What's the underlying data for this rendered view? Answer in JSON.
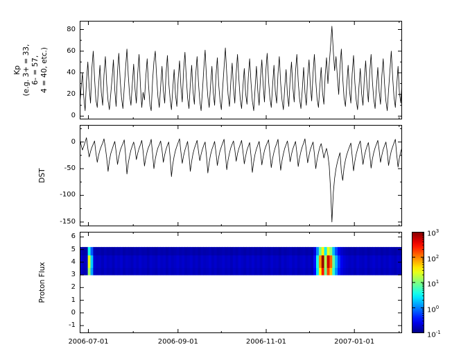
{
  "figure": {
    "background": "#ffffff",
    "axis_color": "#000000",
    "line_color": "#000000"
  },
  "chart_data": {
    "type": "multi-panel",
    "description": "Three stacked geomagnetic/space-weather panels sharing a time axis: Kp index line, DST index line, Proton Flux spectrogram with log colorbar",
    "x": {
      "range_days": [
        0,
        223
      ],
      "major_ticks": [
        {
          "day": 6,
          "label": "2006-07-01"
        },
        {
          "day": 68,
          "label": "2006-09-01"
        },
        {
          "day": 129,
          "label": "2006-11-01"
        },
        {
          "day": 190,
          "label": "2007-01-01"
        }
      ],
      "minor_tick_days": [
        37,
        98,
        159,
        221
      ]
    },
    "panels": [
      {
        "id": "kp",
        "type": "line",
        "ylabel": "Kp (e.g. 3+ = 33, 6- = 57, 4 = 40, etc.)",
        "ylabel_lines": [
          "Kp",
          "(e.g. 3+ = 33,",
          "6- = 57,",
          "4 = 40, etc.)"
        ],
        "ylim": [
          -3,
          88
        ],
        "yticks": [
          0,
          20,
          40,
          60,
          80
        ],
        "yticks_minor": [
          10,
          30,
          50,
          70
        ],
        "line_color": "#000000",
        "values": [
          10,
          25,
          40,
          18,
          5,
          32,
          50,
          27,
          12,
          44,
          60,
          35,
          15,
          8,
          28,
          47,
          22,
          10,
          38,
          55,
          30,
          14,
          6,
          20,
          35,
          52,
          24,
          9,
          41,
          58,
          33,
          17,
          7,
          26,
          45,
          62,
          38,
          19,
          10,
          30,
          48,
          25,
          12,
          40,
          57,
          28,
          8,
          22,
          15,
          36,
          53,
          29,
          11,
          5,
          33,
          50,
          60,
          37,
          18,
          8,
          27,
          46,
          24,
          12,
          39,
          56,
          31,
          16,
          6,
          25,
          43,
          20,
          9,
          34,
          51,
          28,
          13,
          42,
          59,
          36,
          17,
          7,
          29,
          47,
          23,
          11,
          38,
          55,
          32,
          14,
          5,
          24,
          44,
          61,
          35,
          18,
          8,
          28,
          46,
          22,
          10,
          37,
          54,
          30,
          15,
          6,
          26,
          45,
          63,
          39,
          20,
          9,
          31,
          49,
          26,
          12,
          40,
          57,
          34,
          16,
          7,
          27,
          44,
          21,
          11,
          36,
          53,
          31,
          14,
          5,
          25,
          46,
          24,
          10,
          35,
          52,
          29,
          13,
          42,
          58,
          33,
          17,
          8,
          28,
          47,
          23,
          12,
          39,
          55,
          30,
          15,
          6,
          26,
          43,
          20,
          9,
          34,
          50,
          27,
          13,
          41,
          57,
          32,
          16,
          7,
          24,
          45,
          22,
          10,
          36,
          52,
          28,
          14,
          40,
          57,
          33,
          16,
          8,
          27,
          45,
          22,
          11,
          38,
          54,
          30,
          48,
          65,
          83,
          60,
          42,
          55,
          37,
          20,
          46,
          62,
          35,
          17,
          9,
          29,
          47,
          24,
          12,
          39,
          56,
          31,
          15,
          6,
          26,
          44,
          21,
          10,
          34,
          51,
          28,
          13,
          40,
          57,
          32,
          16,
          7,
          27,
          45,
          23,
          11,
          37,
          53,
          30,
          14,
          5,
          24,
          42,
          60,
          36,
          18,
          8,
          28,
          46,
          22,
          12,
          33
        ]
      },
      {
        "id": "dst",
        "type": "line",
        "ylabel": "DST",
        "ylim": [
          -158,
          32
        ],
        "yticks": [
          0,
          -50,
          -100,
          -150
        ],
        "yticks_minor": [
          25,
          -25,
          -75,
          -125
        ],
        "line_color": "#000000",
        "values": [
          5,
          -5,
          -15,
          -8,
          0,
          8,
          -12,
          -28,
          -18,
          -10,
          -4,
          2,
          -20,
          -38,
          -25,
          -15,
          -8,
          -2,
          6,
          -10,
          -30,
          -55,
          -35,
          -22,
          -14,
          -6,
          1,
          -18,
          -42,
          -28,
          -16,
          -9,
          -3,
          4,
          -25,
          -60,
          -40,
          -26,
          -15,
          -7,
          0,
          -12,
          -33,
          -21,
          -12,
          -5,
          3,
          -17,
          -45,
          -30,
          -18,
          -10,
          -4,
          5,
          -22,
          -50,
          -32,
          -20,
          -11,
          -5,
          2,
          -15,
          -38,
          -24,
          -14,
          -6,
          0,
          -28,
          -65,
          -42,
          -27,
          -16,
          -8,
          -1,
          6,
          -18,
          -40,
          -26,
          -15,
          -7,
          1,
          -24,
          -55,
          -36,
          -22,
          -12,
          -5,
          3,
          -16,
          -35,
          -23,
          -13,
          -6,
          0,
          -27,
          -58,
          -38,
          -24,
          -14,
          -7,
          1,
          -19,
          -44,
          -29,
          -17,
          -9,
          -2,
          5,
          -23,
          -52,
          -34,
          -21,
          -11,
          -4,
          2,
          -14,
          -36,
          -22,
          -12,
          -5,
          3,
          -17,
          -41,
          -27,
          -15,
          -8,
          -1,
          -26,
          -57,
          -37,
          -23,
          -13,
          -6,
          1,
          -18,
          -43,
          -28,
          -16,
          -8,
          -2,
          4,
          -21,
          -48,
          -31,
          -19,
          -10,
          -3,
          5,
          -24,
          -53,
          -35,
          -22,
          -12,
          -5,
          2,
          -15,
          -37,
          -23,
          -13,
          -6,
          1,
          -20,
          -46,
          -30,
          -18,
          -9,
          -2,
          6,
          -16,
          -39,
          -25,
          -14,
          -7,
          0,
          -22,
          -50,
          -33,
          -20,
          -10,
          -3,
          -15,
          -30,
          -20,
          -12,
          -25,
          -45,
          -90,
          -150,
          -95,
          -68,
          -50,
          -38,
          -28,
          -20,
          -55,
          -72,
          -48,
          -34,
          -24,
          -16,
          -9,
          -2,
          -26,
          -54,
          -36,
          -23,
          -13,
          -5,
          2,
          -18,
          -42,
          -27,
          -16,
          -8,
          -1,
          -22,
          -49,
          -32,
          -20,
          -11,
          -4,
          3,
          -15,
          -38,
          -25,
          -14,
          -7,
          0,
          -19,
          -44,
          -29,
          -17,
          -9,
          -2,
          5,
          -23,
          -47,
          -30,
          -18,
          -10
        ]
      },
      {
        "id": "pf",
        "type": "heatmap",
        "ylabel": "Proton Flux",
        "ylim": [
          -1.6,
          6.4
        ],
        "yticks": [
          -1,
          0,
          1,
          2,
          3,
          4,
          5,
          6
        ],
        "band_value_range": [
          3,
          5.2
        ],
        "colormap": "jet",
        "log10_flux_range": [
          -1,
          3
        ],
        "log10_flux_slices": [
          -0.7,
          -0.76,
          -0.73,
          1.4,
          0.3,
          -0.68,
          -0.74,
          -0.71,
          -0.77,
          -0.69,
          -0.75,
          -0.72,
          -0.78,
          -0.7,
          -0.74,
          -0.68,
          -0.76,
          -0.71,
          -0.73,
          -0.77,
          -0.7,
          -0.75,
          -0.69,
          -0.74,
          -0.72,
          -0.78,
          -0.7,
          -0.73,
          -0.76,
          -0.69,
          -0.74,
          -0.71,
          -0.77,
          -0.7,
          -0.75,
          -0.72,
          -0.68,
          -0.74,
          -0.7,
          -0.76,
          -0.73,
          -0.69,
          -0.75,
          -0.71,
          -0.77,
          -0.7,
          -0.74,
          -0.72,
          -0.68,
          -0.75,
          -0.7,
          -0.76,
          -0.73,
          -0.69,
          -0.74,
          -0.71,
          -0.77,
          -0.7,
          -0.75,
          -0.68,
          -0.72,
          -0.76,
          -0.7,
          -0.74,
          -0.69,
          -0.75,
          -0.71,
          -0.77,
          -0.7,
          -0.73,
          -0.76,
          -0.69,
          -0.74,
          -0.72,
          -0.78,
          -0.7,
          -0.75,
          -0.71,
          -0.68,
          -0.74,
          -0.7,
          -0.76,
          -0.72,
          -0.69,
          -0.75,
          -0.71,
          -0.77,
          -0.45,
          0.6,
          1.9,
          2.9,
          1.2,
          2.7,
          2.1,
          0.9,
          0.2,
          -0.3,
          -0.55,
          -0.65,
          -0.7,
          -0.74,
          -0.71,
          -0.76,
          -0.69,
          -0.73,
          -0.75,
          -0.7,
          -0.77,
          -0.72,
          -0.68,
          -0.74,
          -0.7,
          -0.76,
          -0.71,
          -0.75,
          -0.69,
          -0.73,
          -0.77,
          -0.7,
          -0.74
        ]
      }
    ],
    "colorbar": {
      "scale": "log",
      "colormap": "jet",
      "ticks_top_to_bottom": [
        {
          "base": "10",
          "exp": "3"
        },
        {
          "base": "10",
          "exp": "2"
        },
        {
          "base": "10",
          "exp": "1"
        },
        {
          "base": "10",
          "exp": "0"
        },
        {
          "base": "10",
          "exp": "-1"
        }
      ]
    }
  }
}
